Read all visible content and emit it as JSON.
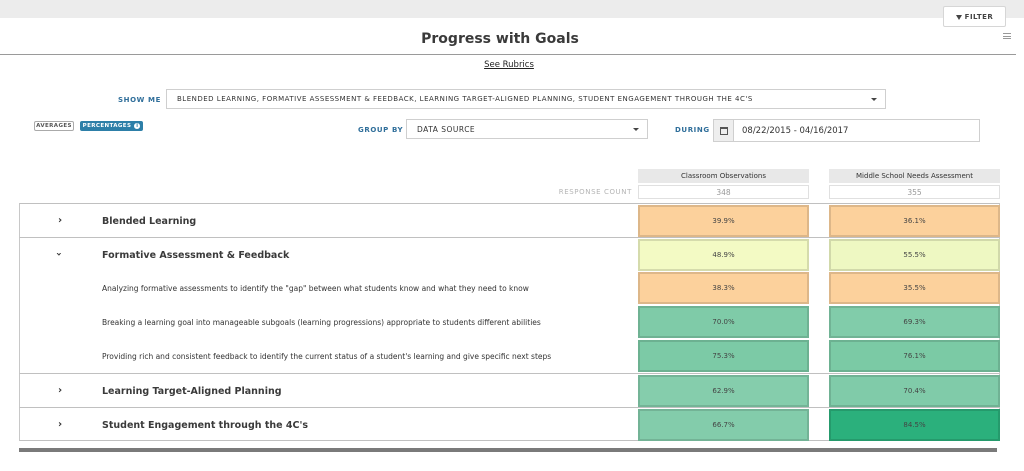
{
  "header": {
    "filter_label": "FILTER",
    "title": "Progress with Goals",
    "see_rubrics": "See Rubrics"
  },
  "controls": {
    "show_me_label": "SHOW ME",
    "show_me_value": "BLENDED LEARNING, FORMATIVE ASSESSMENT & FEEDBACK, LEARNING TARGET-ALIGNED PLANNING, STUDENT ENGAGEMENT THROUGH THE 4C'S",
    "averages_label": "AVERAGES",
    "percentages_label": "PERCENTAGES",
    "info_glyph": "i",
    "group_by_label": "GROUP BY",
    "group_by_value": "DATA SOURCE",
    "during_label": "DURING",
    "date_range": "08/22/2015 - 04/16/2017"
  },
  "table": {
    "columns": [
      "Classroom Observations",
      "Middle School Needs Assessment"
    ],
    "response_count_label": "RESPONSE COUNT",
    "response_counts": [
      "348",
      "355"
    ],
    "rows": [
      {
        "type": "group",
        "label": "Blended Learning",
        "expanded": false,
        "values": [
          "39.9%",
          "36.1%"
        ],
        "colors": [
          "#fcd19c",
          "#fcd19c"
        ]
      },
      {
        "type": "group",
        "label": "Formative Assessment & Feedback",
        "expanded": true,
        "values": [
          "48.9%",
          "55.5%"
        ],
        "colors": [
          "#f3fac4",
          "#eef8c2"
        ]
      },
      {
        "type": "sub",
        "label": "Analyzing formative assessments to identify the \"gap\" between what students know and what they need to know",
        "values": [
          "38.3%",
          "35.5%"
        ],
        "colors": [
          "#fcd19c",
          "#fcd19c"
        ]
      },
      {
        "type": "sub",
        "label": "Breaking a learning goal into manageable subgoals (learning progressions) appropriate to students different abilities",
        "values": [
          "70.0%",
          "69.3%"
        ],
        "colors": [
          "#7fcba8",
          "#81ccaa"
        ]
      },
      {
        "type": "sub",
        "label": "Providing rich and consistent feedback to identify the current status of a student's learning and give specific next steps",
        "values": [
          "75.3%",
          "76.1%"
        ],
        "colors": [
          "#7ccaa6",
          "#7bcaa5"
        ]
      },
      {
        "type": "group",
        "label": "Learning Target-Aligned Planning",
        "expanded": false,
        "values": [
          "62.9%",
          "70.4%"
        ],
        "colors": [
          "#85cdac",
          "#80cba9"
        ]
      },
      {
        "type": "group",
        "label": "Student Engagement through the 4C's",
        "expanded": false,
        "values": [
          "66.7%",
          "84.5%"
        ],
        "colors": [
          "#83ccab",
          "#2bb07c"
        ]
      }
    ]
  }
}
